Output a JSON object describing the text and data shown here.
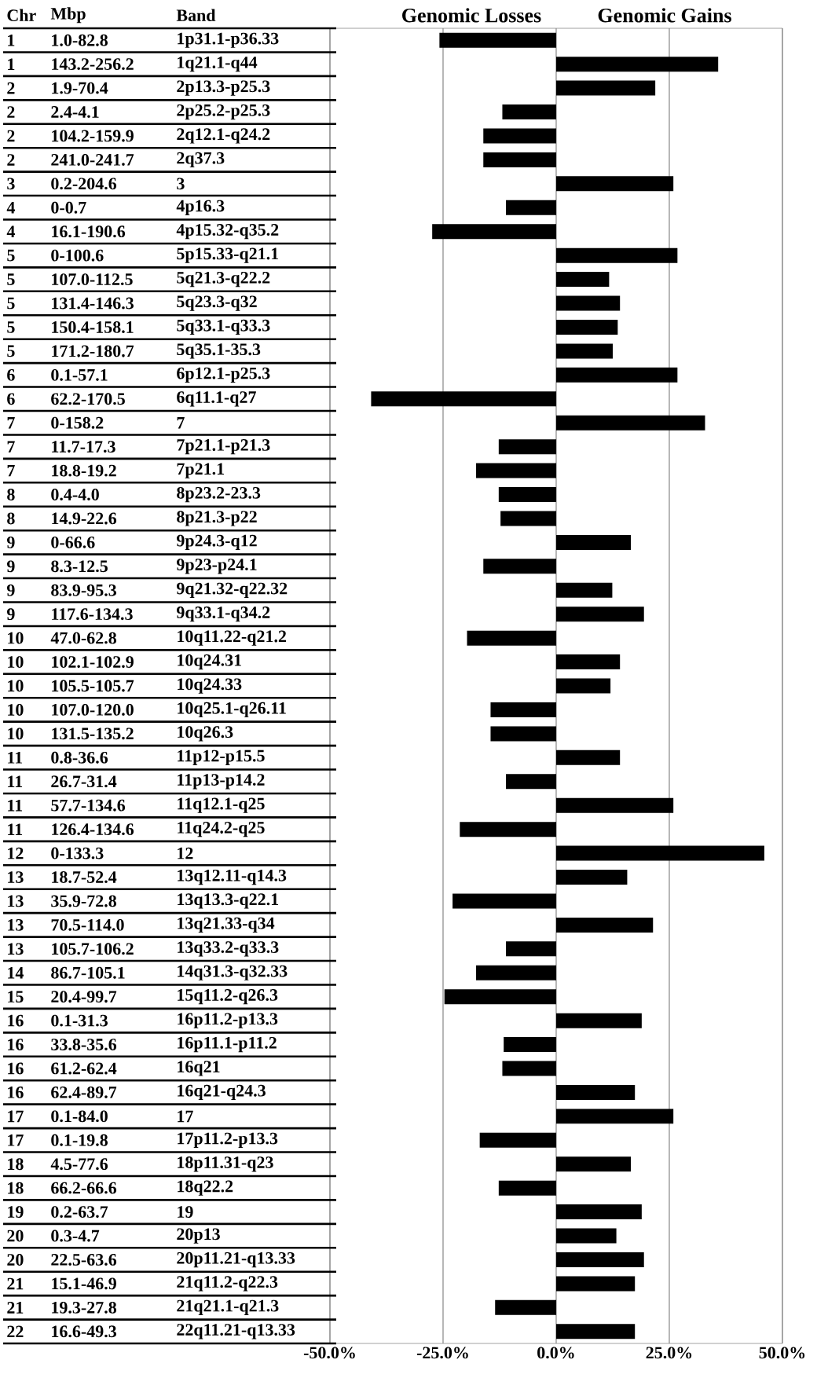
{
  "chart_data": {
    "type": "bar",
    "orientation": "horizontal",
    "ylabel": "Band",
    "categories": [
      "1p31.1-p36.33",
      "1q21.1-q44",
      "2p13.3-p25.3",
      "2p25.2-p25.3",
      "2q12.1-q24.2",
      "2q37.3",
      "3",
      "4p16.3",
      "4p15.32-q35.2",
      "5p15.33-q21.1",
      "5q21.3-q22.2",
      "5q23.3-q32",
      "5q33.1-q33.3",
      "5q35.1-35.3",
      "6p12.1-p25.3",
      "6q11.1-q27",
      "7",
      "7p21.1-p21.3",
      "7p21.1",
      "8p23.2-23.3",
      "8p21.3-p22",
      "9p24.3-q12",
      "9p23-p24.1",
      "9q21.32-q22.32",
      "9q33.1-q34.2",
      "10q11.22-q21.2",
      "10q24.31",
      "10q24.33",
      "10q25.1-q26.11",
      "10q26.3",
      "11p12-p15.5",
      "11p13-p14.2",
      "11q12.1-q25",
      "11q24.2-q25",
      "12",
      "13q12.11-q14.3",
      "13q13.3-q22.1",
      "13q21.33-q34",
      "13q33.2-q33.3",
      "14q31.3-q32.33",
      "15q11.2-q26.3",
      "16p11.2-p13.3",
      "16p11.1-p11.2",
      "16q21",
      "16q21-q24.3",
      "17",
      "17p11.2-p13.3",
      "18p11.31-q23",
      "18q22.2",
      "19",
      "20p13",
      "20p11.21-q13.33",
      "21q11.2-q22.3",
      "21q21.1-q21.3",
      "22q11.21-q13.33"
    ],
    "values": [
      -25.8,
      35.8,
      21.9,
      -11.9,
      -16.1,
      -16.1,
      25.9,
      -11.1,
      -27.4,
      26.8,
      11.7,
      14.1,
      13.6,
      12.5,
      26.8,
      -40.9,
      32.9,
      -12.7,
      -17.7,
      -12.7,
      -12.3,
      16.5,
      -16.1,
      12.4,
      19.4,
      -19.7,
      14.1,
      12.0,
      -14.5,
      -14.5,
      14.1,
      -11.1,
      25.9,
      -21.3,
      46.0,
      15.7,
      -22.9,
      21.4,
      -11.1,
      -17.7,
      -24.7,
      18.9,
      -11.6,
      -11.9,
      17.4,
      25.9,
      -16.9,
      16.5,
      -12.7,
      18.9,
      13.3,
      19.4,
      17.4,
      -13.5,
      17.4
    ],
    "color": "#000000",
    "xlim": [
      -50,
      50
    ],
    "xticks": [
      {
        "value": -50,
        "label": "-50.0%"
      },
      {
        "value": -25,
        "label": "-25.0%"
      },
      {
        "value": 0,
        "label": "0.0%"
      },
      {
        "value": 25,
        "label": "25.0%"
      },
      {
        "value": 50,
        "label": "50.0%"
      }
    ],
    "grid": "x",
    "annotations": [
      "Genomic Losses",
      "Genomic Gains",
      "Chr",
      "Mbp",
      "1",
      "1.0-82.8",
      "1",
      "143.2-256.2",
      "2",
      "1.9-70.4",
      "2",
      "2.4-4.1",
      "2",
      "104.2-159.9",
      "2",
      "241.0-241.7",
      "3",
      "0.2-204.6",
      "4",
      "0-0.7",
      "4",
      "16.1-190.6",
      "5",
      "0-100.6",
      "5",
      "107.0-112.5",
      "5",
      "131.4-146.3",
      "5",
      "150.4-158.1",
      "5",
      "171.2-180.7",
      "6",
      "0.1-57.1",
      "6",
      "62.2-170.5",
      "7",
      "0-158.2",
      "7",
      "11.7-17.3",
      "7",
      "18.8-19.2",
      "8",
      "0.4-4.0",
      "8",
      "14.9-22.6",
      "9",
      "0-66.6",
      "9",
      "8.3-12.5",
      "9",
      "83.9-95.3",
      "9",
      "117.6-134.3",
      "10",
      "47.0-62.8",
      "10",
      "102.1-102.9",
      "10",
      "105.5-105.7",
      "10",
      "107.0-120.0",
      "10",
      "131.5-135.2",
      "11",
      "0.8-36.6",
      "11",
      "26.7-31.4",
      "11",
      "57.7-134.6",
      "11",
      "126.4-134.6",
      "12",
      "0-133.3",
      "13",
      "18.7-52.4",
      "13",
      "35.9-72.8",
      "13",
      "70.5-114.0",
      "13",
      "105.7-106.2",
      "14",
      "86.7-105.1",
      "15",
      "20.4-99.7",
      "16",
      "0.1-31.3",
      "16",
      "33.8-35.6",
      "16",
      "61.2-62.4",
      "16",
      "62.4-89.7",
      "17",
      "0.1-84.0",
      "17",
      "0.1-19.8",
      "18",
      "4.5-77.6",
      "18",
      "66.2-66.6",
      "19",
      "0.2-63.7",
      "20",
      "0.3-4.7",
      "20",
      "22.5-63.6",
      "21",
      "15.1-46.9",
      "21",
      "19.3-27.8",
      "22",
      "16.6-49.3"
    ]
  }
}
